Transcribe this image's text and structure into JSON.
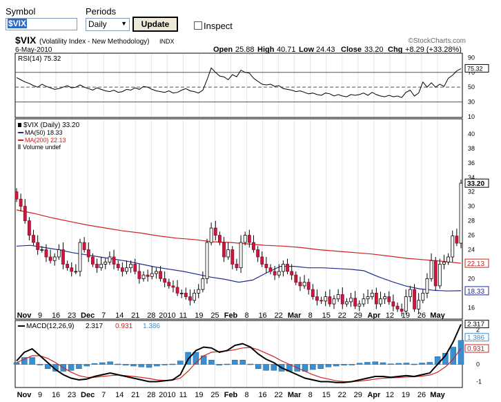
{
  "form": {
    "symbol_label": "Symbol",
    "symbol_value": "$VIX",
    "periods_label": "Periods",
    "period_value": "Daily",
    "update_label": "Update",
    "inspect_label": "Inspect"
  },
  "header": {
    "symbol": "$VIX",
    "name": "(Volatility Index - New Methodology)",
    "exchange": "INDX",
    "watermark": "©StockCharts.com",
    "date": "6-May-2010",
    "open_label": "Open",
    "open": "25.88",
    "high_label": "High",
    "high": "40.71",
    "low_label": "Low",
    "low": "24.43",
    "close_label": "Close",
    "close": "33.20",
    "chg_label": "Chg",
    "chg": "+8.29 (+33.28%)"
  },
  "chart_data": [
    {
      "type": "line",
      "panel": "rsi",
      "title": "RSI(14) 75.32",
      "current": "75.32",
      "ylim": [
        10,
        95
      ],
      "yticks": [
        90,
        70,
        50,
        30,
        10
      ],
      "ref_lines": [
        70,
        50,
        30
      ],
      "values": [
        63,
        60,
        57,
        55,
        52,
        50,
        54,
        51,
        49,
        47,
        48,
        50,
        52,
        49,
        50,
        53,
        50,
        48,
        46,
        49,
        47,
        45,
        44,
        46,
        43,
        44,
        47,
        46,
        49,
        47,
        51,
        50,
        47,
        45,
        44,
        43,
        45,
        42,
        43,
        46,
        48,
        45,
        44,
        42,
        46,
        60,
        76,
        70,
        65,
        64,
        60,
        67,
        64,
        73,
        70,
        69,
        62,
        58,
        54,
        53,
        54,
        51,
        52,
        48,
        47,
        46,
        44,
        45,
        43,
        41,
        42,
        40,
        39,
        42,
        41,
        38,
        40,
        38,
        37,
        40,
        39,
        40,
        42,
        39,
        43,
        40,
        38,
        37,
        39,
        37,
        38,
        36,
        43,
        46,
        38,
        42,
        57,
        50,
        56,
        50,
        54,
        51,
        62,
        66,
        72,
        75
      ]
    },
    {
      "type": "candlestick",
      "panel": "price",
      "title": "$VIX (Daily) 33.20",
      "legend": [
        "$VIX (Daily) 33.20",
        "MA(50) 18.33",
        "MA(200) 22.13",
        "Volume undef"
      ],
      "ylim": [
        14.5,
        42
      ],
      "yticks": [
        40,
        38,
        36,
        34,
        32,
        30,
        28,
        26,
        24,
        22,
        20,
        18,
        16
      ],
      "x_labels": [
        "Nov",
        "9",
        "16",
        "23",
        "Dec",
        "7",
        "14",
        "21",
        "28",
        "2010",
        "11",
        "19",
        "25",
        "Feb",
        "8",
        "16",
        "22",
        "Mar",
        "8",
        "15",
        "22",
        "29",
        "Apr",
        "12",
        "19",
        "26",
        "May"
      ],
      "closes": [
        31,
        30,
        28,
        26,
        25,
        24,
        24,
        23,
        22.5,
        23,
        24,
        22,
        21.5,
        21,
        21,
        25,
        24,
        23,
        22,
        21.5,
        22,
        22.3,
        23,
        22,
        21.5,
        21,
        21.5,
        22,
        21,
        20,
        20.5,
        20.3,
        20.7,
        21,
        20,
        19.5,
        19,
        18.8,
        18,
        18,
        17.5,
        17,
        18,
        18.5,
        20,
        25,
        27,
        26,
        25,
        23,
        24,
        22,
        21.5,
        25,
        26,
        25,
        24,
        23,
        22,
        21.5,
        21,
        20.5,
        21,
        22,
        21,
        20.5,
        19.5,
        19,
        19.5,
        18.5,
        17.5,
        17,
        16.9,
        17.5,
        16.5,
        17.2,
        17.8,
        16.5,
        16.8,
        17.3,
        16.2,
        16.5,
        17.2,
        17.5,
        18,
        16.5,
        17.2,
        17.5,
        16.8,
        16.2,
        15.8,
        15.5,
        17.5,
        18.5,
        15.8,
        17,
        18,
        20,
        22.5,
        19,
        22,
        22.3,
        23,
        25.9,
        24.9,
        33.2
      ],
      "close_current": "33.20",
      "ma50": {
        "label": "MA(50) 18.33",
        "current": "18.33",
        "color": "#1f2c8f",
        "values": [
          24.5,
          24.6,
          24.3,
          24,
          23.6,
          23.3,
          23,
          22.7,
          22.4,
          22,
          21.6,
          21.3,
          21,
          20.6,
          20.2,
          19.9,
          19.5,
          19.8,
          20.8,
          21.7,
          21.7,
          21.5,
          21.5,
          21.4,
          21.3,
          21.1,
          20.3,
          19.6,
          19,
          18.6,
          18.4,
          18.3,
          18.33
        ]
      },
      "ma200": {
        "label": "MA(200) 22.13",
        "current": "22.13",
        "color": "#d0201b",
        "values": [
          29.5,
          29,
          28.4,
          27.9,
          27.4,
          27,
          26.6,
          26.3,
          25.9,
          25.6,
          25.4,
          25.1,
          25,
          24.8,
          24.6,
          24.5,
          24.3,
          24,
          23.8,
          23.6,
          23.4,
          23.1,
          22.8,
          22.6,
          22.4,
          22.13
        ]
      },
      "volume_label": "Volume undef"
    },
    {
      "type": "line+bar",
      "panel": "macd",
      "title": "MACD(12,26,9)",
      "macd_value": "2.317",
      "signal_value": "0.931",
      "hist_value": "1.386",
      "ylim": [
        -1.3,
        2.5
      ],
      "yticks": [
        2,
        1,
        0,
        -1
      ],
      "series": [
        {
          "name": "MACD",
          "color": "#000000",
          "values": [
            0.2,
            0.7,
            0.9,
            0.5,
            0.1,
            -0.3,
            -0.6,
            -0.8,
            -0.9,
            -0.85,
            -0.7,
            -0.6,
            -0.5,
            -0.6,
            -0.7,
            -0.8,
            -0.9,
            -1,
            -1,
            -0.95,
            -0.9,
            -0.6,
            0.3,
            0.8,
            1,
            0.95,
            0.7,
            0.8,
            1.1,
            1.2,
            1,
            0.6,
            0.3,
            0.1,
            -0.2,
            -0.4,
            -0.6,
            -0.8,
            -0.9,
            -1,
            -1,
            -1.05,
            -1.05,
            -1,
            -0.9,
            -0.8,
            -0.7,
            -0.7,
            -0.75,
            -0.7,
            -0.65,
            -0.7,
            -0.6,
            -0.5,
            0,
            0.5,
            1.3,
            2.317
          ]
        },
        {
          "name": "Signal",
          "color": "#d0201b",
          "values": [
            0.1,
            0.3,
            0.5,
            0.5,
            0.35,
            0.1,
            -0.2,
            -0.45,
            -0.65,
            -0.75,
            -0.75,
            -0.7,
            -0.65,
            -0.62,
            -0.65,
            -0.7,
            -0.75,
            -0.82,
            -0.9,
            -0.93,
            -0.92,
            -0.8,
            -0.4,
            0.1,
            0.5,
            0.7,
            0.75,
            0.78,
            0.85,
            0.95,
            0.98,
            0.85,
            0.65,
            0.45,
            0.2,
            0,
            -0.2,
            -0.4,
            -0.6,
            -0.75,
            -0.85,
            -0.95,
            -1,
            -1,
            -0.97,
            -0.92,
            -0.85,
            -0.8,
            -0.78,
            -0.76,
            -0.73,
            -0.72,
            -0.68,
            -0.62,
            -0.45,
            -0.15,
            0.3,
            0.931
          ]
        },
        {
          "name": "Histogram",
          "color": "#3a8fd0",
          "values": [
            0.1,
            0.4,
            0.4,
            0,
            -0.25,
            -0.4,
            -0.4,
            -0.35,
            -0.25,
            -0.1,
            0.05,
            0.1,
            0.15,
            0.02,
            -0.05,
            -0.1,
            -0.15,
            -0.18,
            -0.1,
            -0.02,
            0.02,
            0.2,
            0.7,
            0.7,
            0.5,
            0.25,
            -0.05,
            0.02,
            0.25,
            0.25,
            0.02,
            -0.25,
            -0.35,
            -0.35,
            -0.4,
            -0.4,
            -0.4,
            -0.4,
            -0.3,
            -0.25,
            -0.15,
            -0.1,
            -0.05,
            0,
            0.07,
            0.12,
            0.15,
            0.1,
            0.03,
            0.06,
            0.08,
            0.02,
            0.08,
            0.12,
            0.45,
            0.65,
            1,
            1.386
          ]
        }
      ]
    }
  ]
}
